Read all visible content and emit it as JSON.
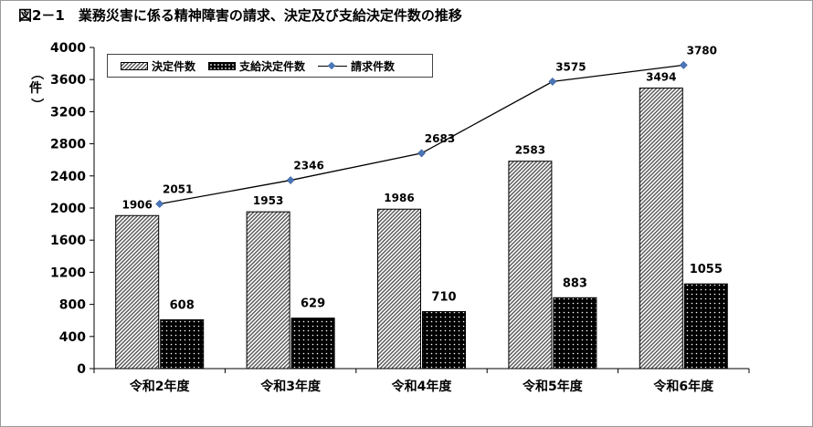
{
  "title": "図2－1　業務災害に係る精神障害の請求、決定及び支給決定件数の推移",
  "chart_data": {
    "type": "bar",
    "categories": [
      "令和2年度",
      "令和3年度",
      "令和4年度",
      "令和5年度",
      "令和6年度"
    ],
    "series": [
      {
        "name": "決定件数",
        "type": "bar",
        "values": [
          1906,
          1953,
          1986,
          2583,
          3494
        ],
        "pattern": "diagonal-hatch"
      },
      {
        "name": "支給決定件数",
        "type": "bar",
        "values": [
          608,
          629,
          710,
          883,
          1055
        ],
        "pattern": "black-dotted"
      },
      {
        "name": "請求件数",
        "type": "line",
        "values": [
          2051,
          2346,
          2683,
          3575,
          3780
        ],
        "color": "#4a76b8"
      }
    ],
    "ylabel": "（件）",
    "ylim": [
      0,
      4000
    ],
    "yticks": [
      0,
      400,
      800,
      1200,
      1600,
      2000,
      2400,
      2800,
      3200,
      3600,
      4000
    ],
    "legend_position": "top-left",
    "grid": false
  }
}
